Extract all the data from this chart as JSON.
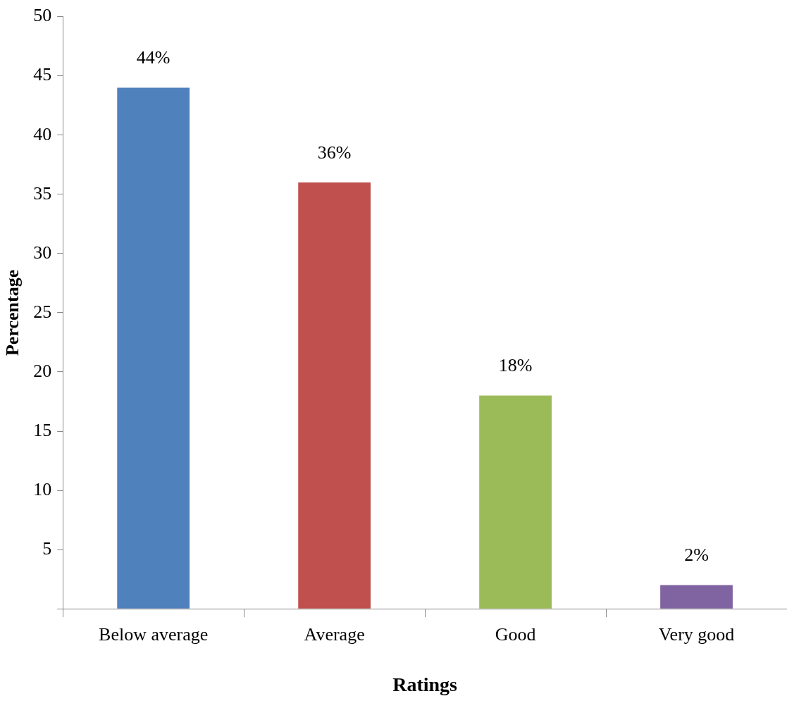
{
  "chart_data": {
    "type": "bar",
    "xlabel": "Ratings",
    "ylabel": "Percentage",
    "categories": [
      "Below average",
      "Average",
      "Good",
      "Very good"
    ],
    "values": [
      44,
      36,
      18,
      2
    ],
    "value_labels": [
      "44%",
      "36%",
      "18%",
      "2%"
    ],
    "colors": [
      "#4f81bd",
      "#c0504d",
      "#9bbb59",
      "#8064a2"
    ],
    "ylim": [
      0,
      50
    ],
    "yticks": [
      {
        "value": 0,
        "label": null
      },
      5,
      10,
      15,
      20,
      25,
      30,
      35,
      40,
      45,
      50
    ],
    "grid": false,
    "legend": false
  }
}
